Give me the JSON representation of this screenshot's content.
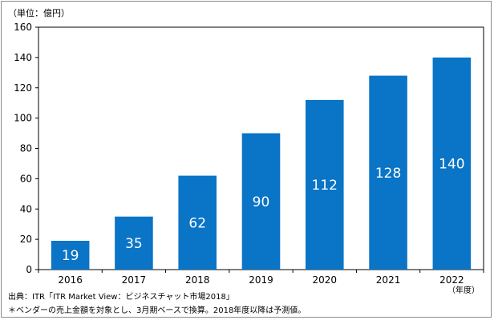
{
  "unit_label": "（単位：億円）",
  "x_unit_label": "（年度）",
  "source_note": "出典：ITR「ITR Market View：ビジネスチャット市場2018」",
  "foot_note": "＊ベンダーの売上金額を対象とし、3月期ベースで換算。2018年度以降は予測値。",
  "colors": {
    "bar": "#0a74c6",
    "bar_label": "#ffffff",
    "gridline": "#000000",
    "axis_text": "#000000"
  },
  "chart_data": {
    "type": "bar",
    "categories": [
      "2016",
      "2017",
      "2018",
      "2019",
      "2020",
      "2021",
      "2022"
    ],
    "values": [
      19,
      35,
      62,
      90,
      112,
      128,
      140
    ],
    "data_labels": [
      "19",
      "35",
      "62",
      "90",
      "112",
      "128",
      "140"
    ],
    "yticks": [
      "0",
      "20",
      "40",
      "60",
      "80",
      "100",
      "120",
      "140",
      "160"
    ],
    "ylim": [
      0,
      160
    ],
    "grid": false,
    "legend": "none"
  }
}
